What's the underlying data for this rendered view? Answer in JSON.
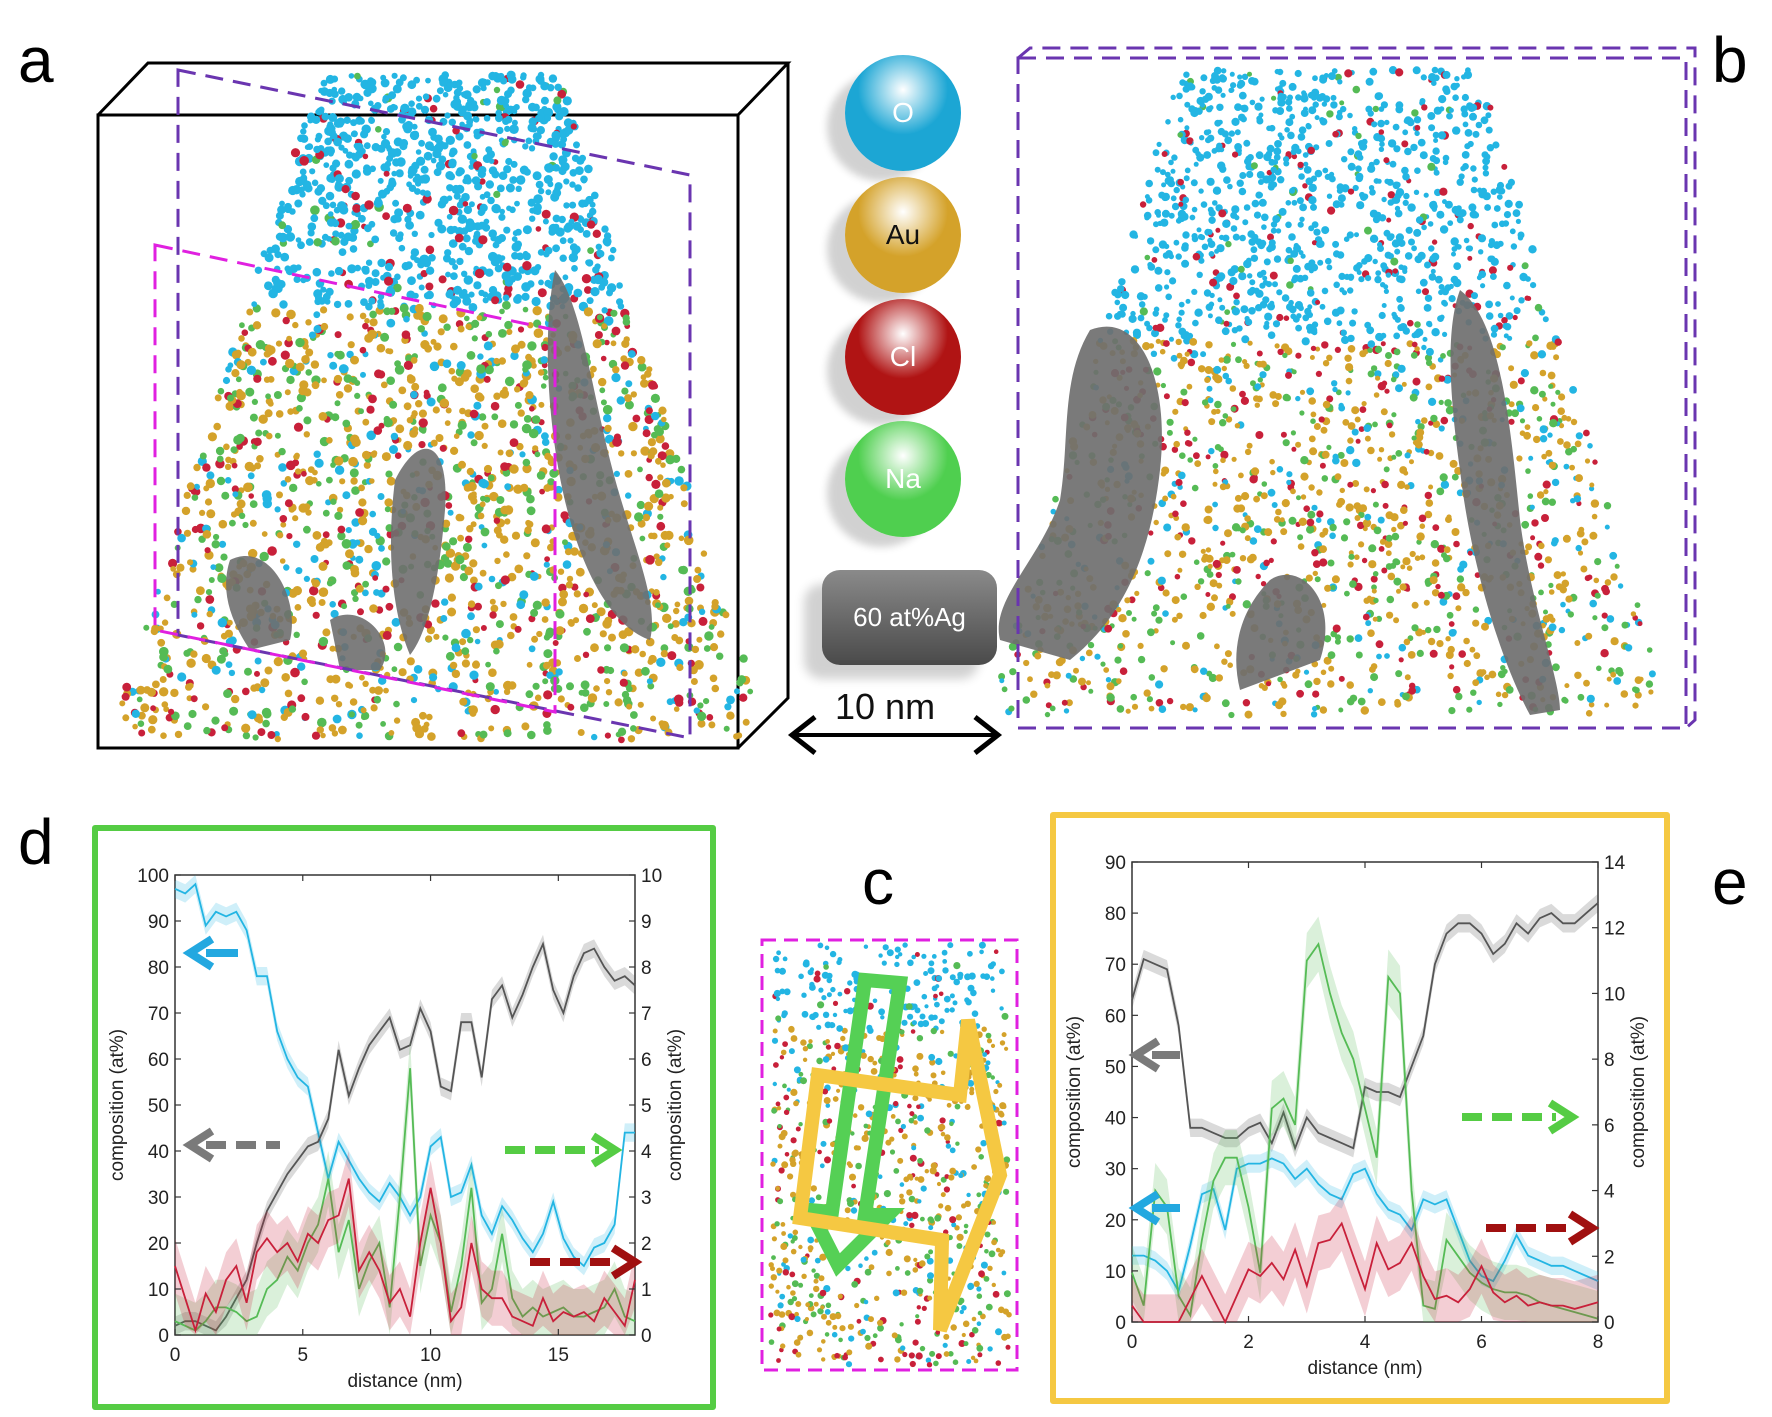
{
  "figure": {
    "panel_labels": {
      "a": "a",
      "b": "b",
      "c": "c",
      "d": "d",
      "e": "e"
    },
    "legend": [
      {
        "label": "O",
        "color": "#1ca6d4",
        "text_color": "#ffffff"
      },
      {
        "label": "Au",
        "color": "#d4a22a",
        "text_color": "#111111"
      },
      {
        "label": "Cl",
        "color": "#b01414",
        "text_color": "#ffffff"
      },
      {
        "label": "Na",
        "color": "#4fcf4f",
        "text_color": "#ffffff"
      }
    ],
    "isosurface_label": "60 at%Ag",
    "isosurface_color": "#6f6f6f",
    "scale_bar": "10 nm",
    "colors": {
      "box_purple": "#6a35b0",
      "box_magenta": "#e020e0",
      "frame_d": "#55cc44",
      "frame_e": "#f5c842",
      "O": "#23b5e3",
      "Ag": "#555555",
      "Na": "#55bb55",
      "Cl": "#c8203a"
    }
  },
  "chart_data": [
    {
      "id": "d",
      "type": "line",
      "title": "",
      "xlabel": "distance (nm)",
      "ylabel_left": "composition (at%)",
      "ylabel_right": "composition (at%)",
      "xlim": [
        0,
        18
      ],
      "ylim_left": [
        0,
        100
      ],
      "ylim_right": [
        0,
        10
      ],
      "xticks": [
        0,
        5,
        10,
        15
      ],
      "yticks_left": [
        0,
        10,
        20,
        30,
        40,
        50,
        60,
        70,
        80,
        90,
        100
      ],
      "yticks_right": [
        0,
        1,
        2,
        3,
        4,
        5,
        6,
        7,
        8,
        9,
        10
      ],
      "grid": false,
      "x": [
        0,
        0.4,
        0.8,
        1.2,
        1.6,
        2.0,
        2.4,
        2.8,
        3.2,
        3.6,
        4.0,
        4.4,
        4.8,
        5.2,
        5.6,
        6.0,
        6.4,
        6.8,
        7.2,
        7.6,
        8.0,
        8.4,
        8.8,
        9.2,
        9.6,
        10.0,
        10.4,
        10.8,
        11.2,
        11.6,
        12.0,
        12.4,
        12.8,
        13.2,
        13.6,
        14.0,
        14.4,
        14.8,
        15.2,
        15.6,
        16.0,
        16.4,
        16.8,
        17.2,
        17.6,
        18.0
      ],
      "series": [
        {
          "name": "O",
          "axis": "left",
          "color": "#23b5e3",
          "arrow": "left",
          "values": [
            97,
            96,
            98,
            89,
            92,
            91,
            92,
            88,
            78,
            78,
            66,
            60,
            56,
            54,
            44,
            34,
            42,
            38,
            34,
            31,
            29,
            33,
            30,
            26,
            30,
            41,
            43,
            30,
            31,
            37,
            26,
            22,
            28,
            25,
            21,
            18,
            22,
            29,
            21,
            17,
            15,
            19,
            20,
            24,
            44,
            44
          ]
        },
        {
          "name": "Ag",
          "axis": "left",
          "color": "#555555",
          "arrow": "left",
          "values": [
            2,
            3,
            3,
            2,
            1,
            4,
            8,
            12,
            20,
            27,
            31,
            35,
            38,
            41,
            42,
            47,
            62,
            52,
            58,
            63,
            66,
            69,
            62,
            63,
            71,
            66,
            54,
            53,
            68,
            68,
            56,
            73,
            76,
            69,
            74,
            80,
            85,
            75,
            70,
            78,
            83,
            84,
            80,
            77,
            78,
            76
          ]
        },
        {
          "name": "Na",
          "axis": "right",
          "color": "#55bb55",
          "arrow": "right",
          "values": [
            0.3,
            0.2,
            0.1,
            0.3,
            0.6,
            0.6,
            0.5,
            0.3,
            0.4,
            1.0,
            1.2,
            1.7,
            1.4,
            2.0,
            2.4,
            3.4,
            1.8,
            2.5,
            1.0,
            1.6,
            2.0,
            0.6,
            3.0,
            5.8,
            1.5,
            2.6,
            2.0,
            0.5,
            1.5,
            3.2,
            0.7,
            1.0,
            2.2,
            0.8,
            0.4,
            0.6,
            0.4,
            0.5,
            0.6,
            0.4,
            0.4,
            0.5,
            0.6,
            1.0,
            0.4,
            0.3
          ]
        },
        {
          "name": "Cl",
          "axis": "right",
          "color": "#c8203a",
          "arrow": "right",
          "values": [
            1.5,
            0.8,
            0.1,
            0.9,
            0.5,
            1.2,
            1.5,
            0.7,
            1.8,
            2.1,
            1.8,
            2.0,
            1.6,
            2.2,
            2.0,
            2.5,
            2.6,
            3.4,
            1.4,
            1.8,
            1.4,
            0.7,
            1.0,
            0.4,
            2.0,
            3.2,
            2.0,
            0.3,
            0.6,
            2.0,
            1.0,
            0.8,
            0.8,
            0.4,
            0.3,
            0.2,
            0.8,
            0.3,
            0.5,
            0.4,
            0.5,
            0.3,
            0.8,
            0.5,
            0.2,
            1.2
          ]
        }
      ]
    },
    {
      "id": "e",
      "type": "line",
      "title": "",
      "xlabel": "distance (nm)",
      "ylabel_left": "composition (at%)",
      "ylabel_right": "composition (at%)",
      "xlim": [
        0,
        8
      ],
      "ylim_left": [
        0,
        90
      ],
      "ylim_right": [
        0,
        14
      ],
      "xticks": [
        0,
        2,
        4,
        6,
        8
      ],
      "yticks_left": [
        0,
        10,
        20,
        30,
        40,
        50,
        60,
        70,
        80,
        90
      ],
      "yticks_right": [
        0,
        2,
        4,
        6,
        8,
        10,
        12,
        14
      ],
      "grid": false,
      "x": [
        0,
        0.2,
        0.4,
        0.6,
        0.8,
        1.0,
        1.2,
        1.4,
        1.6,
        1.8,
        2.0,
        2.2,
        2.4,
        2.6,
        2.8,
        3.0,
        3.2,
        3.4,
        3.6,
        3.8,
        4.0,
        4.2,
        4.4,
        4.6,
        4.8,
        5.0,
        5.2,
        5.4,
        5.6,
        5.8,
        6.0,
        6.2,
        6.4,
        6.6,
        6.8,
        7.0,
        7.2,
        7.4,
        7.6,
        7.8,
        8.0
      ],
      "series": [
        {
          "name": "Ag",
          "axis": "left",
          "color": "#555555",
          "arrow": "left",
          "values": [
            63,
            71,
            70,
            69,
            58,
            38,
            38,
            37,
            36,
            36,
            38,
            39,
            35,
            41,
            34,
            40,
            37,
            36,
            35,
            34,
            46,
            45,
            45,
            44,
            50,
            56,
            70,
            76,
            78,
            78,
            76,
            72,
            74,
            78,
            76,
            79,
            80,
            78,
            78,
            80,
            82
          ]
        },
        {
          "name": "O",
          "axis": "left",
          "color": "#23b5e3",
          "arrow": "left",
          "values": [
            13,
            13,
            12,
            10,
            6,
            15,
            25,
            26,
            18,
            30,
            31,
            31,
            32,
            31,
            28,
            30,
            27,
            25,
            24,
            29,
            30,
            25,
            22,
            21,
            18,
            24,
            23,
            24,
            18,
            12,
            9,
            8,
            12,
            17,
            13,
            12,
            11,
            11,
            10,
            9,
            8
          ]
        },
        {
          "name": "Na",
          "axis": "right",
          "color": "#55bb55",
          "arrow": "right",
          "values": [
            1.5,
            0.5,
            4.0,
            3.5,
            0.8,
            0.2,
            2.5,
            4.3,
            5.0,
            5.0,
            3.5,
            1.5,
            6.5,
            6.8,
            6.0,
            11.0,
            11.5,
            10.0,
            8.8,
            8.0,
            6.5,
            5.0,
            10.5,
            10.0,
            4.0,
            0.5,
            0.4,
            2.5,
            2.0,
            1.5,
            1.2,
            1.0,
            0.9,
            0.9,
            0.8,
            0.6,
            0.5,
            0.4,
            0.3,
            0.2,
            0.1
          ]
        },
        {
          "name": "Cl",
          "axis": "right",
          "color": "#c8203a",
          "arrow": "right",
          "values": [
            0.5,
            0.0,
            0.0,
            0.0,
            0.0,
            0.7,
            1.4,
            0.7,
            0.0,
            0.8,
            1.6,
            1.4,
            1.8,
            1.3,
            2.2,
            1.1,
            2.4,
            2.5,
            3.0,
            2.0,
            1.0,
            2.4,
            1.6,
            1.8,
            2.4,
            1.4,
            0.7,
            0.8,
            0.6,
            1.0,
            1.7,
            0.9,
            0.6,
            0.8,
            0.5,
            0.6,
            0.5,
            0.5,
            0.4,
            0.5,
            0.6
          ]
        }
      ]
    }
  ]
}
